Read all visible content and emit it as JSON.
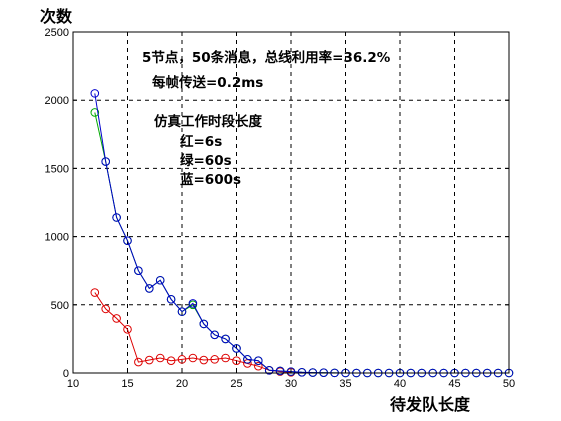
{
  "chart_data": {
    "type": "line",
    "title": "",
    "xlabel": "待发队长度",
    "ylabel": "次数",
    "xlim": [
      10,
      50
    ],
    "ylim": [
      0,
      2500
    ],
    "xticks": [
      10,
      15,
      20,
      25,
      30,
      35,
      40,
      45,
      50
    ],
    "yticks": [
      0,
      500,
      1000,
      1500,
      2000,
      2500
    ],
    "grid": true,
    "annotations": [
      "5节点，50条消息，总线利用率=36.2%",
      "每帧传送=0.2ms",
      "仿真工作时段长度",
      "红=6s",
      "绿=60s",
      "蓝=600s"
    ],
    "series": [
      {
        "color": "#dd0000",
        "x": [
          12,
          13,
          14,
          15,
          16,
          17,
          18,
          19,
          20,
          21,
          22,
          23,
          24,
          25,
          26,
          27,
          28,
          29,
          30
        ],
        "y": [
          590,
          470,
          400,
          320,
          80,
          95,
          110,
          90,
          100,
          110,
          95,
          100,
          110,
          90,
          70,
          50,
          20,
          10,
          5
        ]
      },
      {
        "color": "#00aa00",
        "x": [
          12,
          13,
          14,
          15,
          16,
          17,
          18,
          19,
          20,
          21,
          22,
          23,
          24,
          25,
          26,
          27,
          28,
          29,
          30,
          31,
          32,
          33,
          34,
          35,
          36,
          37,
          38,
          39,
          40,
          41,
          42,
          43,
          44,
          45,
          46,
          47,
          48,
          49,
          50
        ],
        "y": [
          1910,
          1550,
          1140,
          970,
          750,
          620,
          680,
          540,
          450,
          500,
          360,
          280,
          250,
          180,
          100,
          90,
          20,
          15,
          10,
          5,
          3,
          2,
          1,
          0,
          0,
          0,
          0,
          0,
          0,
          0,
          0,
          0,
          0,
          0,
          0,
          0,
          0,
          0,
          0
        ]
      },
      {
        "color": "#0000cc",
        "x": [
          12,
          13,
          14,
          15,
          16,
          17,
          18,
          19,
          20,
          21,
          22,
          23,
          24,
          25,
          26,
          27,
          28,
          29,
          30,
          31,
          32,
          33,
          34,
          35,
          36,
          37,
          38,
          39,
          40,
          41,
          42,
          43,
          44,
          45,
          46,
          47,
          48,
          49,
          50
        ],
        "y": [
          2050,
          1550,
          1140,
          970,
          750,
          620,
          680,
          540,
          450,
          510,
          360,
          280,
          250,
          180,
          100,
          90,
          20,
          15,
          10,
          5,
          3,
          2,
          1,
          0,
          0,
          0,
          0,
          0,
          0,
          0,
          0,
          0,
          0,
          0,
          0,
          0,
          0,
          0,
          0
        ]
      }
    ]
  }
}
